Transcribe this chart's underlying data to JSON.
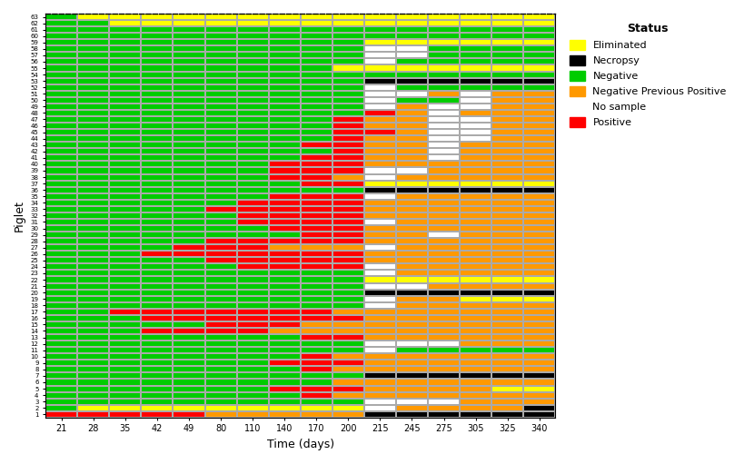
{
  "time_points": [
    21,
    28,
    35,
    42,
    49,
    80,
    110,
    140,
    170,
    200,
    215,
    245,
    275,
    305,
    325,
    340
  ],
  "n_piglets": 63,
  "status_codes": {
    "Eliminated": 1,
    "Necropsy": 2,
    "Negative": 3,
    "Negative Previous Positive": 4,
    "No sample": 5,
    "Positive": 6
  },
  "colors": {
    "Eliminated": "#FFFF00",
    "Necropsy": "#000000",
    "Negative": "#00CC00",
    "Negative Previous Positive": "#FF9900",
    "No sample": "#FFFFFF",
    "Positive": "#FF0000"
  },
  "xlabel": "Time (days)",
  "ylabel": "Piglet",
  "legend_title": "Status",
  "grid_color": "#AAAAAA",
  "matrix_top_to_bottom": [
    [
      3,
      1,
      1,
      1,
      1,
      1,
      1,
      1,
      1,
      1,
      1,
      1,
      1,
      1,
      1,
      1
    ],
    [
      3,
      3,
      1,
      1,
      1,
      1,
      1,
      1,
      1,
      1,
      1,
      1,
      1,
      1,
      1,
      1
    ],
    [
      3,
      3,
      3,
      3,
      3,
      3,
      3,
      3,
      3,
      3,
      3,
      3,
      3,
      3,
      3,
      3
    ],
    [
      3,
      3,
      3,
      3,
      3,
      3,
      3,
      3,
      3,
      3,
      3,
      3,
      3,
      3,
      3,
      3
    ],
    [
      3,
      3,
      3,
      3,
      3,
      3,
      3,
      3,
      3,
      3,
      1,
      1,
      1,
      1,
      1,
      1
    ],
    [
      3,
      3,
      3,
      3,
      3,
      3,
      3,
      3,
      3,
      3,
      5,
      5,
      3,
      3,
      3,
      3
    ],
    [
      3,
      3,
      3,
      3,
      3,
      3,
      3,
      3,
      3,
      3,
      5,
      5,
      3,
      3,
      3,
      3
    ],
    [
      3,
      3,
      3,
      3,
      3,
      3,
      3,
      3,
      3,
      3,
      5,
      3,
      3,
      3,
      3,
      3
    ],
    [
      3,
      3,
      3,
      3,
      3,
      3,
      3,
      3,
      3,
      1,
      1,
      1,
      1,
      1,
      1,
      1
    ],
    [
      3,
      3,
      3,
      3,
      3,
      3,
      3,
      3,
      3,
      3,
      3,
      3,
      3,
      3,
      3,
      3
    ],
    [
      3,
      3,
      3,
      3,
      3,
      3,
      3,
      3,
      3,
      3,
      2,
      2,
      2,
      2,
      2,
      2
    ],
    [
      3,
      3,
      3,
      3,
      3,
      3,
      3,
      3,
      3,
      3,
      5,
      3,
      3,
      3,
      3,
      3
    ],
    [
      3,
      3,
      3,
      3,
      3,
      3,
      3,
      3,
      3,
      3,
      5,
      5,
      4,
      5,
      4,
      4
    ],
    [
      3,
      3,
      3,
      3,
      3,
      3,
      3,
      3,
      3,
      3,
      5,
      3,
      3,
      5,
      4,
      4
    ],
    [
      3,
      3,
      3,
      3,
      3,
      3,
      3,
      3,
      3,
      3,
      5,
      4,
      5,
      5,
      4,
      4
    ],
    [
      3,
      3,
      3,
      3,
      3,
      3,
      3,
      3,
      3,
      3,
      6,
      4,
      5,
      4,
      4,
      4
    ],
    [
      3,
      3,
      3,
      3,
      3,
      3,
      3,
      3,
      3,
      6,
      4,
      4,
      5,
      5,
      4,
      4
    ],
    [
      3,
      3,
      3,
      3,
      3,
      3,
      3,
      3,
      3,
      6,
      4,
      4,
      5,
      5,
      4,
      4
    ],
    [
      3,
      3,
      3,
      3,
      3,
      3,
      3,
      3,
      3,
      6,
      6,
      4,
      5,
      5,
      4,
      4
    ],
    [
      3,
      3,
      3,
      3,
      3,
      3,
      3,
      3,
      3,
      6,
      4,
      4,
      5,
      5,
      4,
      4
    ],
    [
      3,
      3,
      3,
      3,
      3,
      3,
      3,
      3,
      6,
      6,
      4,
      4,
      5,
      4,
      4,
      4
    ],
    [
      3,
      3,
      3,
      3,
      3,
      3,
      3,
      3,
      3,
      6,
      4,
      4,
      5,
      4,
      4,
      4
    ],
    [
      3,
      3,
      3,
      3,
      3,
      3,
      3,
      3,
      6,
      6,
      4,
      4,
      5,
      4,
      4,
      4
    ],
    [
      3,
      3,
      3,
      3,
      3,
      3,
      3,
      6,
      6,
      6,
      4,
      4,
      4,
      4,
      4,
      4
    ],
    [
      3,
      3,
      3,
      3,
      3,
      3,
      3,
      6,
      6,
      6,
      5,
      5,
      4,
      4,
      4,
      4
    ],
    [
      3,
      3,
      3,
      3,
      3,
      3,
      3,
      6,
      6,
      4,
      5,
      4,
      4,
      4,
      4,
      4
    ],
    [
      3,
      3,
      3,
      3,
      3,
      3,
      3,
      3,
      6,
      6,
      1,
      1,
      1,
      1,
      1,
      1
    ],
    [
      3,
      3,
      3,
      3,
      3,
      3,
      3,
      3,
      3,
      3,
      2,
      2,
      2,
      2,
      2,
      2
    ],
    [
      3,
      3,
      3,
      3,
      3,
      3,
      3,
      6,
      6,
      6,
      5,
      4,
      4,
      4,
      4,
      4
    ],
    [
      3,
      3,
      3,
      3,
      3,
      3,
      6,
      6,
      6,
      6,
      4,
      4,
      4,
      4,
      4,
      4
    ],
    [
      3,
      3,
      3,
      3,
      3,
      6,
      6,
      6,
      6,
      6,
      4,
      4,
      4,
      4,
      4,
      4
    ],
    [
      3,
      3,
      3,
      3,
      3,
      3,
      6,
      6,
      6,
      6,
      4,
      4,
      4,
      4,
      4,
      4
    ],
    [
      3,
      3,
      3,
      3,
      3,
      3,
      6,
      6,
      6,
      6,
      5,
      4,
      4,
      4,
      4,
      4
    ],
    [
      3,
      3,
      3,
      3,
      3,
      3,
      3,
      6,
      6,
      6,
      4,
      4,
      4,
      4,
      4,
      4
    ],
    [
      3,
      3,
      3,
      3,
      3,
      3,
      3,
      3,
      6,
      6,
      4,
      4,
      5,
      4,
      4,
      4
    ],
    [
      3,
      3,
      3,
      3,
      3,
      6,
      6,
      6,
      6,
      6,
      4,
      4,
      4,
      4,
      4,
      4
    ],
    [
      3,
      3,
      3,
      3,
      6,
      6,
      6,
      4,
      4,
      4,
      5,
      4,
      4,
      4,
      4,
      4
    ],
    [
      3,
      3,
      3,
      6,
      6,
      6,
      6,
      6,
      6,
      6,
      4,
      4,
      4,
      4,
      4,
      4
    ],
    [
      3,
      3,
      3,
      3,
      3,
      6,
      6,
      6,
      6,
      6,
      4,
      4,
      4,
      4,
      4,
      4
    ],
    [
      3,
      3,
      3,
      3,
      3,
      3,
      6,
      6,
      6,
      6,
      5,
      4,
      4,
      4,
      4,
      4
    ],
    [
      3,
      3,
      3,
      3,
      3,
      3,
      3,
      3,
      3,
      3,
      5,
      4,
      4,
      4,
      4,
      4
    ],
    [
      3,
      3,
      3,
      3,
      3,
      3,
      3,
      3,
      3,
      3,
      1,
      1,
      1,
      1,
      1,
      1
    ],
    [
      3,
      3,
      3,
      3,
      3,
      3,
      3,
      3,
      3,
      3,
      5,
      5,
      4,
      4,
      4,
      4
    ],
    [
      3,
      3,
      3,
      3,
      3,
      3,
      3,
      3,
      3,
      3,
      2,
      2,
      2,
      2,
      2,
      2
    ],
    [
      3,
      3,
      3,
      3,
      3,
      3,
      3,
      3,
      3,
      3,
      5,
      4,
      4,
      1,
      1,
      1
    ],
    [
      3,
      3,
      3,
      3,
      3,
      3,
      3,
      3,
      3,
      3,
      5,
      4,
      4,
      4,
      4,
      4
    ],
    [
      3,
      3,
      6,
      6,
      6,
      6,
      6,
      6,
      6,
      4,
      4,
      4,
      4,
      4,
      4,
      4
    ],
    [
      3,
      3,
      3,
      6,
      6,
      6,
      6,
      6,
      6,
      6,
      4,
      4,
      4,
      4,
      4,
      4
    ],
    [
      3,
      3,
      3,
      3,
      3,
      6,
      6,
      6,
      4,
      4,
      4,
      4,
      4,
      4,
      4,
      4
    ],
    [
      3,
      3,
      3,
      6,
      6,
      6,
      6,
      4,
      4,
      4,
      4,
      4,
      4,
      4,
      4,
      4
    ],
    [
      3,
      3,
      3,
      3,
      3,
      3,
      3,
      3,
      6,
      6,
      4,
      4,
      4,
      4,
      4,
      4
    ],
    [
      3,
      3,
      3,
      3,
      3,
      3,
      3,
      3,
      3,
      3,
      5,
      5,
      5,
      4,
      4,
      4
    ],
    [
      3,
      3,
      3,
      3,
      3,
      3,
      3,
      3,
      3,
      3,
      5,
      3,
      3,
      3,
      3,
      3
    ],
    [
      3,
      3,
      3,
      3,
      3,
      3,
      3,
      3,
      6,
      4,
      4,
      4,
      4,
      4,
      4,
      4
    ],
    [
      3,
      3,
      3,
      3,
      3,
      3,
      3,
      6,
      6,
      6,
      4,
      4,
      4,
      4,
      4,
      4
    ],
    [
      3,
      3,
      3,
      3,
      3,
      3,
      3,
      3,
      6,
      4,
      4,
      4,
      4,
      4,
      4,
      4
    ],
    [
      3,
      3,
      3,
      3,
      3,
      3,
      3,
      3,
      3,
      3,
      2,
      2,
      2,
      2,
      2,
      2
    ],
    [
      3,
      3,
      3,
      3,
      3,
      3,
      3,
      3,
      3,
      4,
      4,
      4,
      4,
      4,
      4,
      4
    ],
    [
      3,
      3,
      3,
      3,
      3,
      3,
      3,
      6,
      6,
      6,
      4,
      4,
      4,
      4,
      1,
      1
    ],
    [
      3,
      3,
      3,
      3,
      3,
      3,
      3,
      3,
      6,
      4,
      4,
      4,
      4,
      4,
      4,
      4
    ],
    [
      3,
      3,
      3,
      3,
      3,
      3,
      3,
      3,
      3,
      3,
      5,
      5,
      5,
      4,
      4,
      4
    ],
    [
      3,
      1,
      1,
      1,
      1,
      1,
      1,
      1,
      1,
      1,
      5,
      4,
      4,
      4,
      4,
      2
    ],
    [
      6,
      6,
      6,
      6,
      6,
      4,
      4,
      4,
      4,
      4,
      2,
      2,
      2,
      2,
      2,
      2
    ]
  ]
}
